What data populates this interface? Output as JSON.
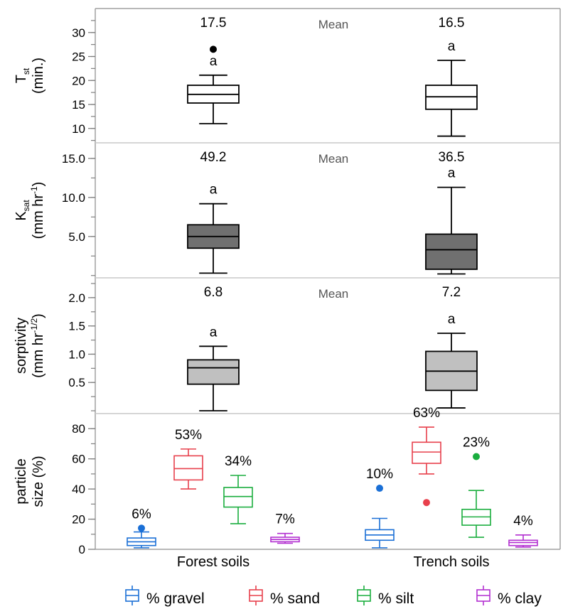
{
  "chart_data": {
    "type": "box",
    "categories": [
      "Forest soils",
      "Trench soils"
    ],
    "panels": [
      {
        "id": "tst",
        "ylabel_main": "T",
        "ylabel_sub": "st",
        "ylabel_line2": "(min.)",
        "ylim": [
          7,
          35
        ],
        "ticks": [
          "10",
          "15",
          "20",
          "25",
          "30"
        ],
        "tick_values": [
          10,
          15,
          20,
          25,
          30
        ],
        "mean_label": "Mean",
        "fill": "#ffffff",
        "boxes": [
          {
            "category": "Forest soils",
            "whisker_low": 11,
            "q1": 15.3,
            "median": 17.1,
            "q3": 19.0,
            "whisker_high": 21.1,
            "outliers": [
              26.5
            ],
            "letter": "a",
            "mean": "17.5"
          },
          {
            "category": "Trench soils",
            "whisker_low": 8.4,
            "q1": 14.0,
            "median": 16.6,
            "q3": 19.0,
            "whisker_high": 24.2,
            "outliers": [],
            "letter": "a",
            "mean": "16.5"
          }
        ]
      },
      {
        "id": "ksat",
        "ylabel_main": "K",
        "ylabel_sub": "sat",
        "ylabel_line2": "(mm hr",
        "ylabel_sup": "-1",
        "ylabel_close": ")",
        "ylim": [
          -0.3,
          17
        ],
        "ticks": [
          "5.0",
          "10.0",
          "15.0"
        ],
        "tick_values": [
          5,
          10,
          15
        ],
        "mean_label": "Mean",
        "fill": "#707070",
        "boxes": [
          {
            "category": "Forest soils",
            "whisker_low": 0.3,
            "q1": 3.5,
            "median": 5.0,
            "q3": 6.5,
            "whisker_high": 9.2,
            "outliers": [],
            "letter": "a",
            "mean": "49.2"
          },
          {
            "category": "Trench soils",
            "whisker_low": 0.2,
            "q1": 0.8,
            "median": 3.3,
            "q3": 5.3,
            "whisker_high": 11.3,
            "outliers": [],
            "letter": "a",
            "mean": "36.5"
          }
        ]
      },
      {
        "id": "sorptivity",
        "ylabel_main": "sorptivity",
        "ylabel_line2": "(mm hr",
        "ylabel_sup": "-1/2",
        "ylabel_close": ")",
        "ylim": [
          -0.05,
          2.35
        ],
        "ticks": [
          "0.5",
          "1.0",
          "1.5",
          "2.0"
        ],
        "tick_values": [
          0.5,
          1.0,
          1.5,
          2.0
        ],
        "mean_label": "Mean",
        "fill": "#c0c0c0",
        "boxes": [
          {
            "category": "Forest soils",
            "whisker_low": 0.0,
            "q1": 0.47,
            "median": 0.76,
            "q3": 0.9,
            "whisker_high": 1.14,
            "outliers": [],
            "letter": "a",
            "mean": "6.8"
          },
          {
            "category": "Trench soils",
            "whisker_low": 0.05,
            "q1": 0.36,
            "median": 0.7,
            "q3": 1.05,
            "whisker_high": 1.37,
            "outliers": [],
            "letter": "a",
            "mean": "7.2"
          }
        ]
      },
      {
        "id": "particle",
        "ylabel_main": "particle",
        "ylabel_line2": "size (%)",
        "ylim": [
          0,
          90
        ],
        "ticks": [
          "0",
          "20",
          "40",
          "60",
          "80"
        ],
        "tick_values": [
          0,
          20,
          40,
          60,
          80
        ],
        "series": [
          {
            "name": "% gravel",
            "color": "#1a6fd6"
          },
          {
            "name": "% sand",
            "color": "#e8404c"
          },
          {
            "name": "% silt",
            "color": "#1aad3e"
          },
          {
            "name": "% clay",
            "color": "#b22fd0"
          }
        ],
        "boxes": [
          {
            "category": "Forest soils",
            "series": 0,
            "whisker_low": 1,
            "q1": 2.5,
            "median": 5,
            "q3": 7.5,
            "whisker_high": 11.5,
            "outliers": [
              14
            ],
            "label": "6%"
          },
          {
            "category": "Forest soils",
            "series": 1,
            "whisker_low": 40,
            "q1": 46,
            "median": 53.5,
            "q3": 62,
            "whisker_high": 66.5,
            "outliers": [],
            "label": "53%"
          },
          {
            "category": "Forest soils",
            "series": 2,
            "whisker_low": 17,
            "q1": 28,
            "median": 35,
            "q3": 41,
            "whisker_high": 49,
            "outliers": [],
            "label": "34%"
          },
          {
            "category": "Forest soils",
            "series": 3,
            "whisker_low": 4,
            "q1": 5,
            "median": 6.5,
            "q3": 8,
            "whisker_high": 10.5,
            "outliers": [],
            "label": "7%"
          },
          {
            "category": "Trench soils",
            "series": 0,
            "whisker_low": 1,
            "q1": 6,
            "median": 9.5,
            "q3": 13,
            "whisker_high": 20.5,
            "outliers": [
              40.5
            ],
            "label": "10%"
          },
          {
            "category": "Trench soils",
            "series": 1,
            "whisker_low": 50,
            "q1": 57,
            "median": 64.5,
            "q3": 71,
            "whisker_high": 81,
            "outliers": [
              31
            ],
            "label": "63%"
          },
          {
            "category": "Trench soils",
            "series": 2,
            "whisker_low": 8,
            "q1": 16,
            "median": 21.5,
            "q3": 26.5,
            "whisker_high": 39,
            "outliers": [
              61.5
            ],
            "label": "23%"
          },
          {
            "category": "Trench soils",
            "series": 3,
            "whisker_low": 1.5,
            "q1": 2.5,
            "median": 4.5,
            "q3": 6,
            "whisker_high": 9.5,
            "outliers": [],
            "label": "4%"
          }
        ]
      }
    ],
    "legend_position": "bottom",
    "grid": false
  }
}
